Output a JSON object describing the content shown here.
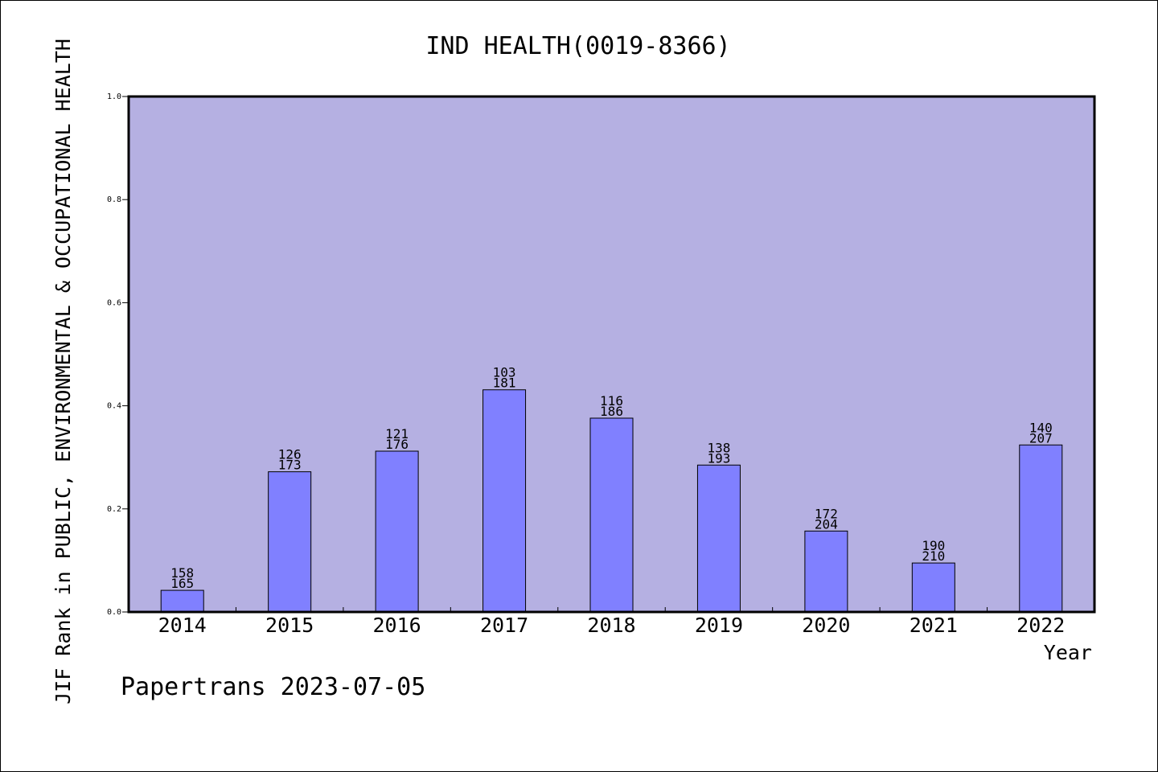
{
  "chart_data": {
    "type": "bar",
    "title": "IND HEALTH(0019-8366)",
    "xlabel": "Year",
    "ylabel": "JIF Rank in PUBLIC, ENVIRONMENTAL & OCCUPATIONAL HEALTH",
    "ylim": [
      0,
      1.0
    ],
    "yticks": [
      "0.0",
      "0.2",
      "0.4",
      "0.6",
      "0.8",
      "1.0"
    ],
    "categories": [
      "2014",
      "2015",
      "2016",
      "2017",
      "2018",
      "2019",
      "2020",
      "2021",
      "2022"
    ],
    "values": [
      0.042,
      0.272,
      0.312,
      0.431,
      0.376,
      0.285,
      0.157,
      0.095,
      0.324
    ],
    "labels_top": [
      "158",
      "126",
      "121",
      "103",
      "116",
      "138",
      "172",
      "190",
      "140"
    ],
    "labels_bottom": [
      "165",
      "173",
      "176",
      "181",
      "186",
      "193",
      "204",
      "210",
      "207"
    ],
    "grid": false,
    "colors": {
      "plot_background": "#b5b0e2",
      "bar_fill": "#8080ff",
      "bar_stroke": "#000000",
      "text": "#000000"
    }
  },
  "footer": {
    "credit": "Papertrans 2023-07-05"
  }
}
